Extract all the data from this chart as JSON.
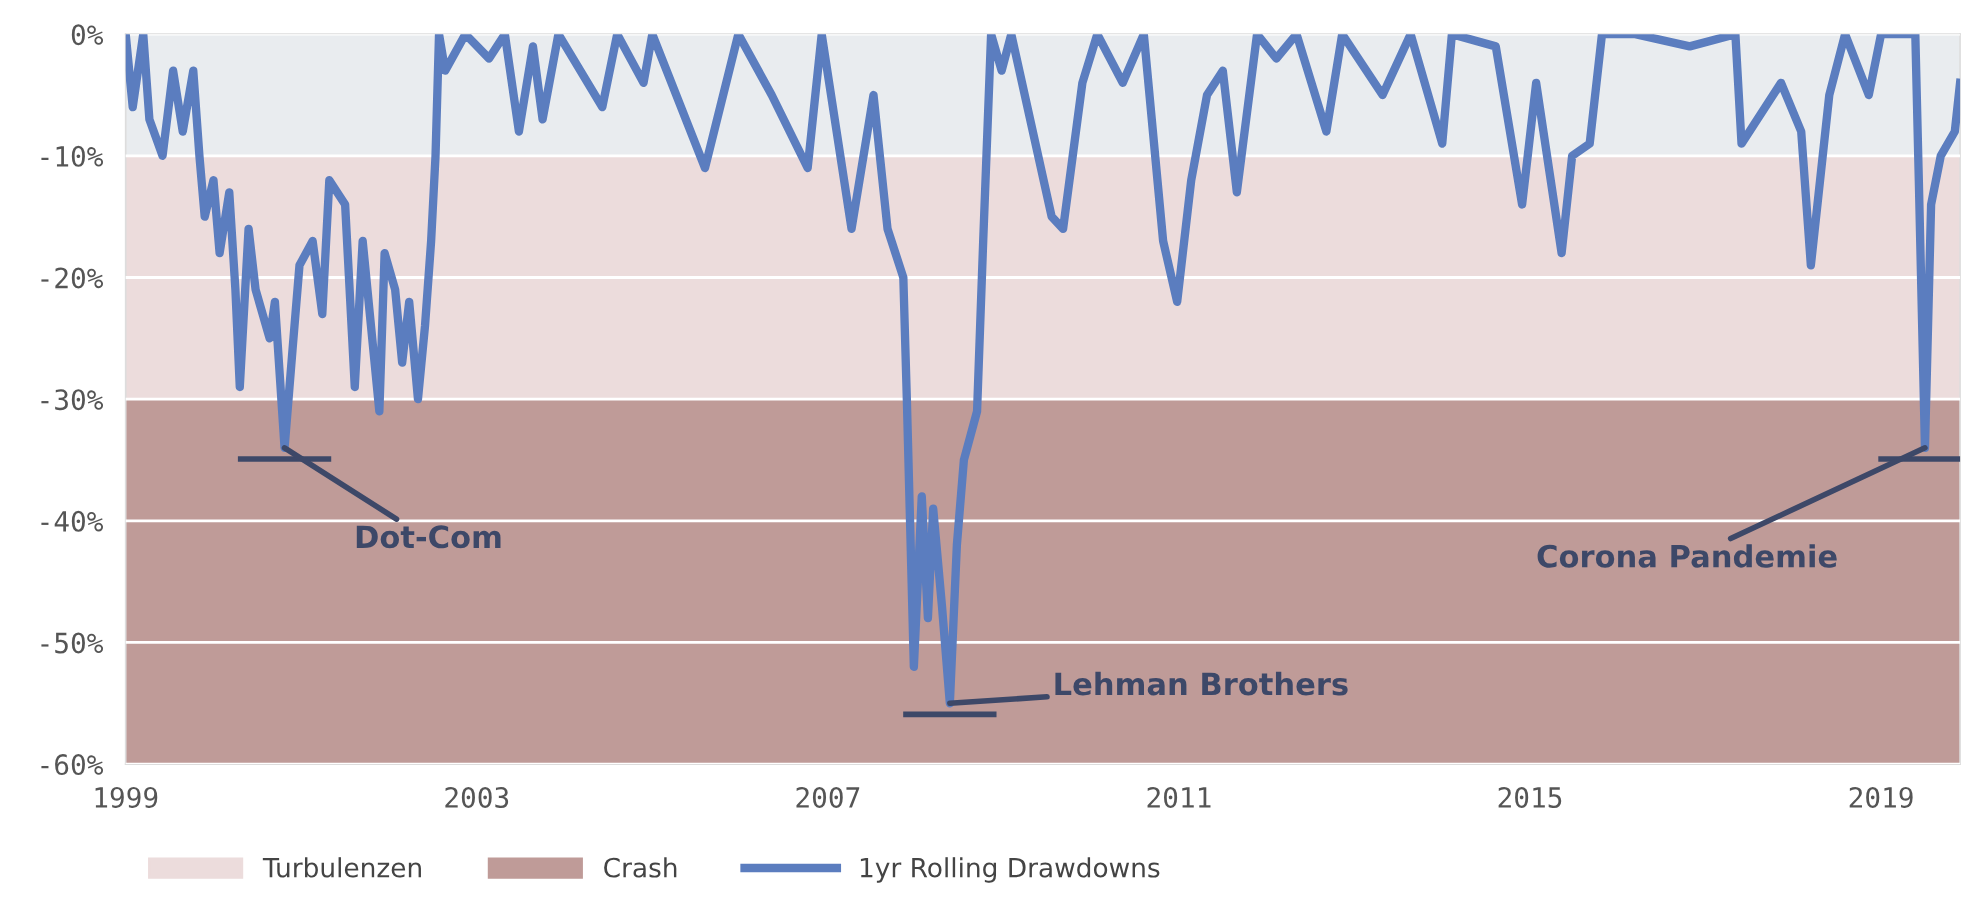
{
  "chart_data": {
    "type": "line",
    "xlim": [
      1999,
      2019.9
    ],
    "xticks": [
      1999,
      2003,
      2007,
      2011,
      2015,
      2019
    ],
    "ylim": [
      -60,
      0
    ],
    "yticks": [
      {
        "value": 0,
        "label": "0%"
      },
      {
        "value": -10,
        "label": "-10%"
      },
      {
        "value": -20,
        "label": "-20%"
      },
      {
        "value": -30,
        "label": "-30%"
      },
      {
        "value": -40,
        "label": "-40%"
      },
      {
        "value": -50,
        "label": "-50%"
      },
      {
        "value": -60,
        "label": "-60%"
      }
    ],
    "grid": "y",
    "legend": "bottom left",
    "bands": [
      {
        "axis": "y",
        "from": -10,
        "to": 0,
        "color": "#e9ecef"
      },
      {
        "axis": "y",
        "from": -30,
        "to": -10,
        "label": "Turbulenzen",
        "color": "#ecdcdc"
      },
      {
        "axis": "y",
        "from": -60,
        "to": -30,
        "label": "Crash",
        "color": "#bf9b98"
      }
    ],
    "annotations": [
      {
        "text": "Dot-Com",
        "x": 2000.81,
        "y": -34
      },
      {
        "text": "Lehman Brothers",
        "x": 2008.39,
        "y": -55
      },
      {
        "text": "Corona Pandemie",
        "x": 2019.5,
        "y": -34
      }
    ],
    "series": [
      {
        "name": "1yr Rolling Drawdowns",
        "color": "#5b7dbf",
        "x": [
          1999.0,
          1999.08,
          1999.2,
          1999.27,
          1999.42,
          1999.54,
          1999.65,
          1999.77,
          1999.84,
          1999.9,
          2000.0,
          2000.07,
          2000.18,
          2000.25,
          2000.3,
          2000.4,
          2000.48,
          2000.64,
          2000.7,
          2000.81,
          2000.9,
          2000.98,
          2001.13,
          2001.24,
          2001.32,
          2001.5,
          2001.61,
          2001.7,
          2001.89,
          2001.95,
          2002.07,
          2002.15,
          2002.23,
          2002.33,
          2002.41,
          2002.48,
          2002.53,
          2002.57,
          2002.64,
          2002.87,
          2003.14,
          2003.32,
          2003.48,
          2003.64,
          2003.75,
          2003.93,
          2004.43,
          2004.6,
          2004.9,
          2005.0,
          2005.6,
          2005.98,
          2006.36,
          2006.77,
          2006.93,
          2007.27,
          2007.52,
          2007.68,
          2007.86,
          2007.9,
          2007.98,
          2008.07,
          2008.14,
          2008.2,
          2008.3,
          2008.39,
          2008.47,
          2008.55,
          2008.7,
          2008.77,
          2008.86,
          2008.98,
          2009.09,
          2009.55,
          2009.68,
          2009.9,
          2010.07,
          2010.36,
          2010.6,
          2010.82,
          2010.98,
          2011.14,
          2011.32,
          2011.5,
          2011.66,
          2011.89,
          2012.11,
          2012.34,
          2012.68,
          2012.86,
          2013.32,
          2013.64,
          2014.0,
          2014.11,
          2014.61,
          2014.91,
          2015.07,
          2015.36,
          2015.48,
          2015.68,
          2015.82,
          2016.2,
          2016.82,
          2017.34,
          2017.41,
          2017.86,
          2018.09,
          2018.2,
          2018.41,
          2018.59,
          2018.86,
          2019.0,
          2019.39,
          2019.43,
          2019.5,
          2019.57,
          2019.68,
          2019.84,
          2019.9
        ],
        "values": [
          0,
          -6,
          0,
          -7,
          -10,
          -3,
          -8,
          -3,
          -10,
          -15,
          -12,
          -18,
          -13,
          -21,
          -29,
          -16,
          -21,
          -25,
          -22,
          -34,
          -26,
          -19,
          -17,
          -23,
          -12,
          -14,
          -29,
          -17,
          -31,
          -18,
          -21,
          -27,
          -22,
          -30,
          -24,
          -17,
          -10,
          0,
          -3,
          0,
          -2,
          0,
          -8,
          -1,
          -7,
          0,
          -6,
          0,
          -4,
          0,
          -11,
          0,
          -5,
          -11,
          0,
          -16,
          -5,
          -16,
          -20,
          -30,
          -52,
          -38,
          -48,
          -39,
          -47,
          -55,
          -42,
          -35,
          -31,
          -17,
          0,
          -3,
          0,
          -15,
          -16,
          -4,
          0,
          -4,
          0,
          -17,
          -22,
          -12,
          -5,
          -3,
          -13,
          0,
          -2,
          0,
          -8,
          0,
          -5,
          0,
          -9,
          0,
          -1,
          -14,
          -4,
          -18,
          -10,
          -9,
          0,
          0,
          -1,
          0,
          -9,
          -4,
          -8,
          -19,
          -5,
          0,
          -5,
          0,
          0,
          -12,
          -34,
          -14,
          -10,
          -8,
          -4
        ]
      }
    ]
  }
}
